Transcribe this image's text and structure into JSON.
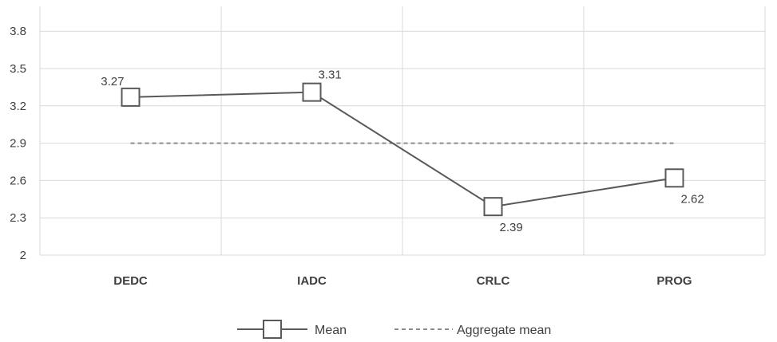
{
  "chart_data": {
    "type": "line",
    "title": "",
    "xlabel": "",
    "ylabel": "",
    "categories": [
      "DEDC",
      "IADC",
      "CRLC",
      "PROG"
    ],
    "ylim": [
      2,
      4
    ],
    "yticks": [
      "2",
      "2.3",
      "2.6",
      "2.9",
      "3.2",
      "3.5",
      "3.8"
    ],
    "grid": true,
    "legend_position": "bottom",
    "series": [
      {
        "name": "Mean",
        "values": [
          3.27,
          3.31,
          2.39,
          2.62
        ],
        "labels": [
          "3.27",
          "3.31",
          "2.39",
          "2.62"
        ],
        "label_positions": [
          "above-left",
          "above-right",
          "below-right",
          "below-right"
        ],
        "marker": "square",
        "line_style": "solid",
        "color": "#595959"
      },
      {
        "name": "Aggregate mean",
        "values": [
          2.9,
          2.9,
          2.9,
          2.9
        ],
        "line_style": "dashed",
        "color": "#8c8c8c"
      }
    ]
  }
}
